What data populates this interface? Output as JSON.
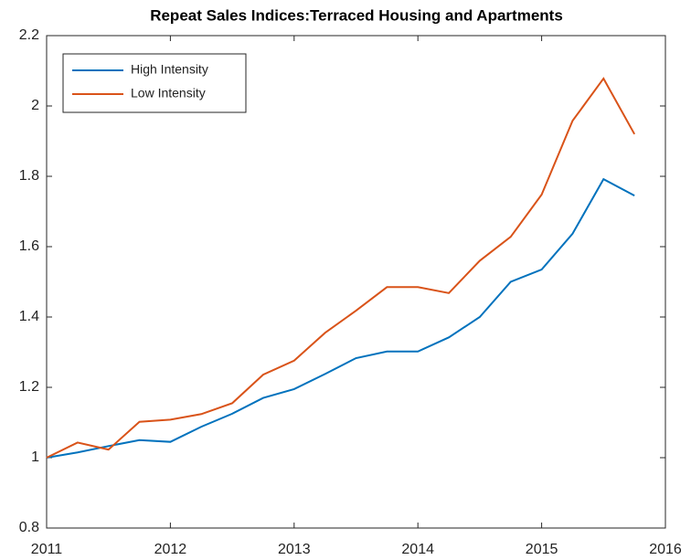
{
  "chart_data": {
    "type": "line",
    "title": "Repeat Sales Indices:Terraced Housing and Apartments",
    "x": [
      2011,
      2011.25,
      2011.5,
      2011.75,
      2012,
      2012.25,
      2012.5,
      2012.75,
      2013,
      2013.25,
      2013.5,
      2013.75,
      2014,
      2014.25,
      2014.5,
      2014.75,
      2015,
      2015.25,
      2015.5,
      2015.75
    ],
    "series": [
      {
        "name": "High Intensity",
        "color": "#0072bd",
        "values": [
          1.0,
          1.015,
          1.033,
          1.05,
          1.045,
          1.088,
          1.125,
          1.17,
          1.195,
          1.238,
          1.283,
          1.302,
          1.302,
          1.342,
          1.4,
          1.5,
          1.535,
          1.637,
          1.792,
          1.745
        ]
      },
      {
        "name": "Low Intensity",
        "color": "#d95319",
        "values": [
          1.0,
          1.043,
          1.023,
          1.102,
          1.108,
          1.124,
          1.155,
          1.236,
          1.276,
          1.355,
          1.418,
          1.485,
          1.485,
          1.468,
          1.56,
          1.628,
          1.748,
          1.958,
          2.078,
          1.92
        ]
      }
    ],
    "xlim": [
      2011,
      2016
    ],
    "xticks": [
      2011,
      2012,
      2013,
      2014,
      2015,
      2016
    ],
    "ylim": [
      0.8,
      2.2
    ],
    "yticks": [
      0.8,
      1,
      1.2,
      1.4,
      1.6,
      1.8,
      2,
      2.2
    ],
    "grid": false,
    "legend": "upper left"
  }
}
